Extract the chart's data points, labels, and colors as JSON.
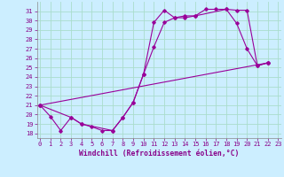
{
  "background_color": "#cceeff",
  "grid_color": "#aaddcc",
  "line_color": "#990099",
  "marker_color": "#990099",
  "xlabel": "Windchill (Refroidissement éolien,°C)",
  "ylabel_ticks": [
    18,
    19,
    20,
    21,
    22,
    23,
    24,
    25,
    26,
    27,
    28,
    29,
    30,
    31
  ],
  "xtick_labels": [
    "0",
    "1",
    "2",
    "3",
    "4",
    "5",
    "6",
    "7",
    "8",
    "9",
    "10",
    "11",
    "12",
    "13",
    "14",
    "15",
    "16",
    "17",
    "18",
    "19",
    "20",
    "21",
    "22",
    "23"
  ],
  "ylim": [
    17.5,
    32.0
  ],
  "xlim": [
    -0.3,
    23.3
  ],
  "series_x": [
    [
      0,
      1,
      2,
      3,
      4,
      5,
      6,
      7,
      8,
      9,
      10,
      11,
      12,
      13,
      14,
      15,
      16,
      17,
      18,
      19,
      20,
      21,
      22
    ],
    [
      0,
      3,
      4,
      7,
      8,
      9,
      10,
      11,
      12,
      13,
      14,
      15,
      18,
      19,
      20,
      21,
      22
    ],
    [
      0,
      22
    ]
  ],
  "series_y": [
    [
      21.0,
      19.8,
      18.3,
      19.7,
      19.0,
      18.7,
      18.3,
      18.3,
      19.7,
      21.3,
      24.3,
      29.8,
      31.1,
      30.3,
      30.3,
      30.5,
      31.2,
      31.2,
      31.2,
      31.1,
      31.1,
      25.2,
      25.5
    ],
    [
      21.0,
      19.7,
      19.0,
      18.3,
      19.7,
      21.3,
      24.3,
      27.2,
      29.8,
      30.3,
      30.5,
      30.5,
      31.2,
      29.7,
      27.0,
      25.2,
      25.5
    ],
    [
      21.0,
      25.5
    ]
  ]
}
